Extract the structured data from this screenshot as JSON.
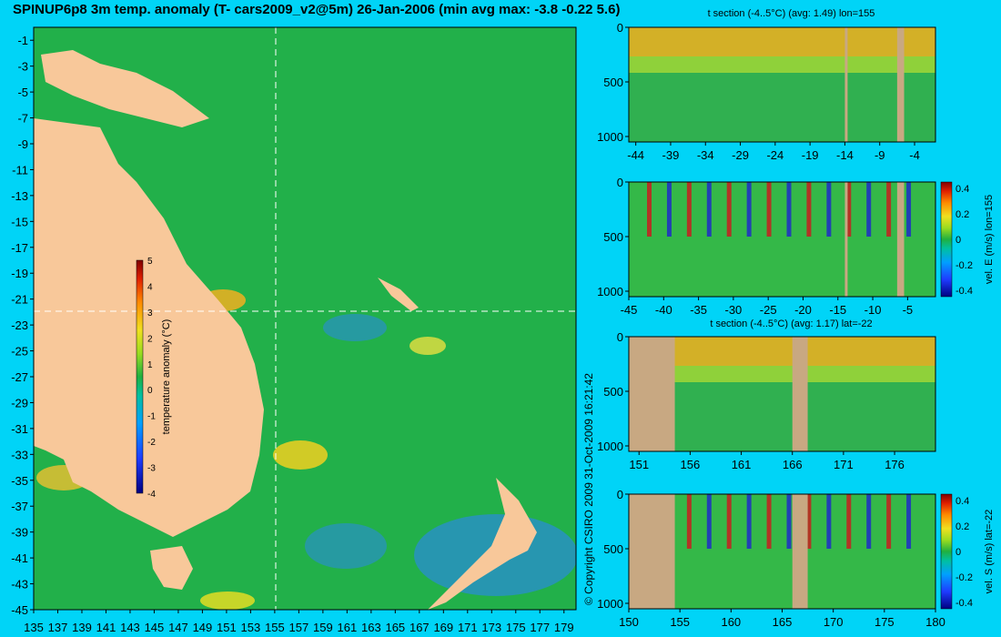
{
  "page": {
    "title": "SPINUP6p8 3m temp. anomaly (T- cars2009_v2@5m) 26-Jan-2006 (min avg max: -3.8 -0.22 5.6)",
    "copyright": "© Copyright CSIRO 2009   31-Oct-2009 16:21:42",
    "colors": {
      "background": "#00d4f7",
      "land": "#f8c89a",
      "section_land": "#c8a882"
    }
  },
  "chart_data": [
    {
      "type": "heatmap",
      "title": "SPINUP6p8 3m temp. anomaly (T- cars2009_v2@5m) 26-Jan-2006 (min avg max: -3.8 -0.22 5.6)",
      "x_ticks": [
        "135",
        "137",
        "139",
        "141",
        "143",
        "145",
        "147",
        "149",
        "151",
        "153",
        "155",
        "157",
        "159",
        "161",
        "163",
        "165",
        "167",
        "169",
        "171",
        "173",
        "175",
        "177",
        "179"
      ],
      "y_ticks": [
        "-1",
        "-3",
        "-5",
        "-7",
        "-9",
        "-11",
        "-13",
        "-15",
        "-17",
        "-19",
        "-21",
        "-23",
        "-25",
        "-27",
        "-29",
        "-31",
        "-33",
        "-35",
        "-37",
        "-39",
        "-41",
        "-43",
        "-45"
      ],
      "xlim": [
        135,
        180
      ],
      "ylim": [
        -45,
        0
      ],
      "colorbar": {
        "label": "temperature anomaly (°C)",
        "ticks": [
          "5",
          "4",
          "3",
          "2",
          "1",
          "0",
          "-1",
          "-2",
          "-3",
          "-4"
        ],
        "range": [
          -4,
          5
        ]
      },
      "section_lines": {
        "lon": 155,
        "lat": -22
      }
    },
    {
      "type": "heatmap",
      "title": "t section (-4..5°C) (avg: 1.49) lon=155",
      "x_ticks": [
        "-44",
        "-39",
        "-34",
        "-29",
        "-24",
        "-19",
        "-14",
        "-9",
        "-4"
      ],
      "y_ticks": [
        "0",
        "500",
        "1000"
      ],
      "xlim": [
        -45,
        -1
      ],
      "ylim": [
        1050,
        0
      ]
    },
    {
      "type": "heatmap",
      "title": "",
      "x_ticks": [
        "-45",
        "-40",
        "-35",
        "-30",
        "-25",
        "-20",
        "-15",
        "-10",
        "-5"
      ],
      "y_ticks": [
        "0",
        "500",
        "1000"
      ],
      "xlim": [
        -45,
        -1
      ],
      "ylim": [
        1050,
        0
      ],
      "colorbar": {
        "label": "vel. E (m/s) lon=155",
        "ticks": [
          "0.4",
          "0.2",
          "0",
          "-0.2",
          "-0.4"
        ],
        "range": [
          -0.45,
          0.45
        ]
      }
    },
    {
      "type": "heatmap",
      "title": "t section (-4..5°C) (avg: 1.17) lat=-22",
      "x_ticks": [
        "151",
        "156",
        "161",
        "166",
        "171",
        "176"
      ],
      "y_ticks": [
        "0",
        "500",
        "1000"
      ],
      "xlim": [
        150,
        180
      ],
      "ylim": [
        1050,
        0
      ]
    },
    {
      "type": "heatmap",
      "title": "",
      "x_ticks": [
        "150",
        "155",
        "160",
        "165",
        "170",
        "175",
        "180"
      ],
      "y_ticks": [
        "0",
        "500",
        "1000"
      ],
      "xlim": [
        150,
        180
      ],
      "ylim": [
        1050,
        0
      ],
      "colorbar": {
        "label": "vel. S (m/s) lat=-22",
        "ticks": [
          "0.4",
          "0.2",
          "0",
          "-0.2",
          "-0.4"
        ],
        "range": [
          -0.45,
          0.45
        ]
      }
    }
  ]
}
